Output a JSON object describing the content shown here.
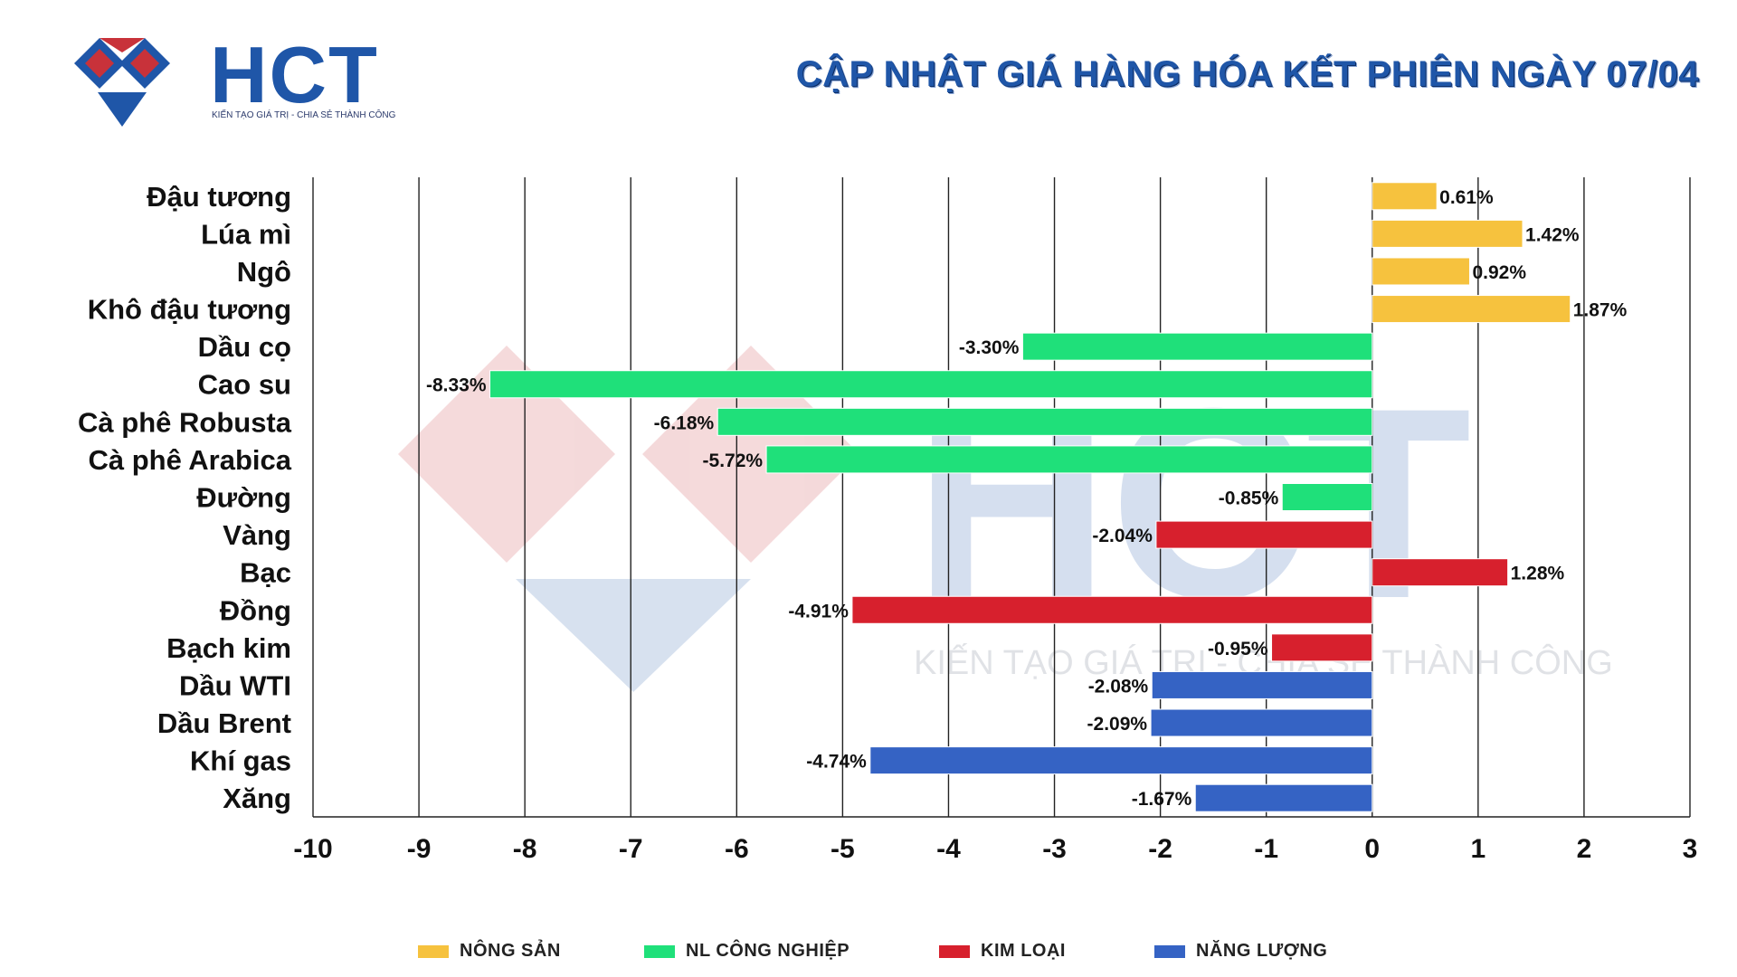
{
  "brand": {
    "name": "HCT",
    "tagline": "KIẾN TẠO GIÁ TRỊ - CHIA SẺ THÀNH CÔNG",
    "blue": "#1f56a8",
    "red": "#c8323a"
  },
  "header": {
    "title": "CẬP NHẬT GIÁ HÀNG HÓA KẾT PHIÊN NGÀY 07/04"
  },
  "chart_data": {
    "type": "bar",
    "orientation": "horizontal",
    "title": "CẬP NHẬT GIÁ HÀNG HÓA KẾT PHIÊN NGÀY 07/04",
    "xlabel": "",
    "ylabel": "",
    "xlim": [
      -10,
      3
    ],
    "xticks": [
      -10,
      -9,
      -8,
      -7,
      -6,
      -5,
      -4,
      -3,
      -2,
      -1,
      0,
      1,
      2,
      3
    ],
    "grid": "vertical",
    "legend_position": "bottom",
    "categories": [
      "Đậu tương",
      "Lúa mì",
      "Ngô",
      "Khô đậu tương",
      "Dầu cọ",
      "Cao su",
      "Cà phê Robusta",
      "Cà phê Arabica",
      "Đường",
      "Vàng",
      "Bạc",
      "Đồng",
      "Bạch kim",
      "Dầu WTI",
      "Dầu Brent",
      "Khí gas",
      "Xăng"
    ],
    "values": [
      0.61,
      1.42,
      0.92,
      1.87,
      -3.3,
      -8.33,
      -6.18,
      -5.72,
      -0.85,
      -2.04,
      1.28,
      -4.91,
      -0.95,
      -2.08,
      -2.09,
      -4.74,
      -1.67
    ],
    "value_labels": [
      "0.61%",
      "1.42%",
      "0.92%",
      "1.87%",
      "-3.30%",
      "-8.33%",
      "-6.18%",
      "-5.72%",
      "-0.85%",
      "-2.04%",
      "1.28%",
      "-4.91%",
      "-0.95%",
      "-2.08%",
      "-2.09%",
      "-4.74%",
      "-1.67%"
    ],
    "groups": [
      "agri",
      "agri",
      "agri",
      "agri",
      "ind",
      "ind",
      "ind",
      "ind",
      "ind",
      "metal",
      "metal",
      "metal",
      "metal",
      "energy",
      "energy",
      "energy",
      "energy"
    ],
    "series": [
      {
        "key": "agri",
        "name": "NÔNG SẢN",
        "color": "#f6c23e"
      },
      {
        "key": "ind",
        "name": "NL CÔNG NGHIỆP",
        "color": "#1fe07a"
      },
      {
        "key": "metal",
        "name": "KIM LOẠI",
        "color": "#d7202d"
      },
      {
        "key": "energy",
        "name": "NĂNG LƯỢNG",
        "color": "#3563c4"
      }
    ]
  }
}
